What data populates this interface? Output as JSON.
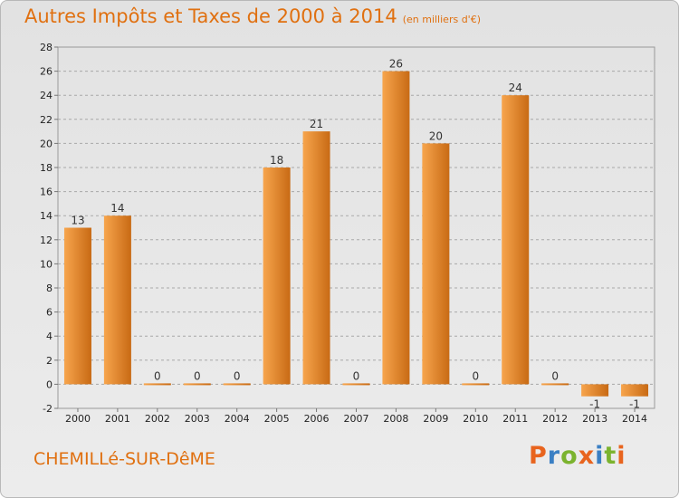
{
  "chart_data": {
    "type": "bar",
    "title": "Autres Impôts et Taxes de 2000 à 2014",
    "subtitle": "(en milliers d'€)",
    "categories": [
      "2000",
      "2001",
      "2002",
      "2003",
      "2004",
      "2005",
      "2006",
      "2007",
      "2008",
      "2009",
      "2010",
      "2011",
      "2012",
      "2013",
      "2014"
    ],
    "values": [
      13,
      14,
      0,
      0,
      0,
      18,
      21,
      0,
      26,
      20,
      0,
      24,
      0,
      -1,
      -1
    ],
    "data_labels": [
      "13",
      "14",
      "0",
      "0",
      "0",
      "18",
      "21",
      "0",
      "26",
      "20",
      "0",
      "24",
      "0",
      "-1",
      "-1"
    ],
    "ylim": [
      -2,
      28
    ],
    "yticks": [
      -2,
      0,
      2,
      4,
      6,
      8,
      10,
      12,
      14,
      16,
      18,
      20,
      22,
      24,
      26,
      28
    ],
    "grid": true,
    "xlabel": "",
    "ylabel": ""
  },
  "footer": {
    "commune": "CHEMILLé-SUR-DêME",
    "brand": [
      "P",
      "r",
      "o",
      "x",
      "i",
      "t",
      "i"
    ]
  },
  "colors": {
    "bar_light": "#f7a54d",
    "bar_dark": "#c86a14",
    "title": "#e07010",
    "grid": "#a8a8a8",
    "brand": [
      "#e8641e",
      "#3a7fc4",
      "#7bb32e",
      "#e8641e",
      "#3a7fc4",
      "#7bb32e",
      "#e8641e"
    ]
  }
}
